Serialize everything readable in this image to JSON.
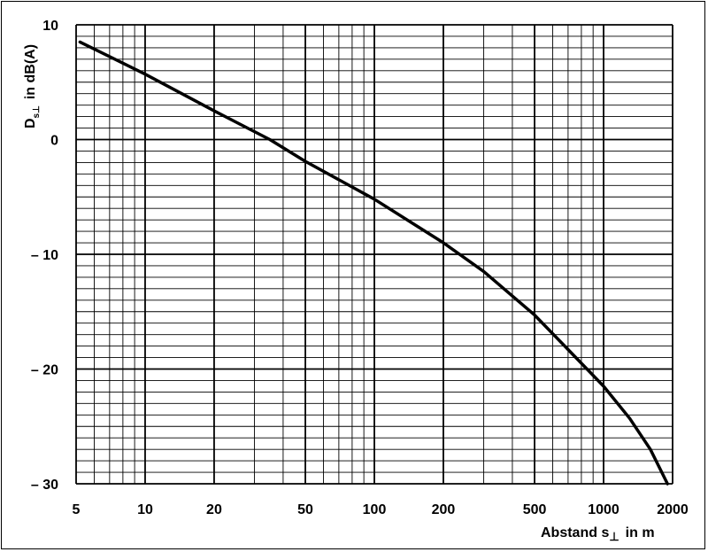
{
  "chart_data": {
    "type": "line",
    "x_scale": "log",
    "xlim": [
      5,
      2000
    ],
    "ylim": [
      -30,
      10
    ],
    "grid": true,
    "ylabel": {
      "main": "D",
      "sub": "s⊥",
      "rest": "in dB(A)"
    },
    "xlabel": {
      "main": "Abstand s",
      "sub": "⊥",
      "rest": "in m"
    },
    "x_ticks": [
      {
        "value": 5,
        "label": "5"
      },
      {
        "value": 10,
        "label": "10"
      },
      {
        "value": 20,
        "label": "20"
      },
      {
        "value": 50,
        "label": "50"
      },
      {
        "value": 100,
        "label": "100"
      },
      {
        "value": 200,
        "label": "200"
      },
      {
        "value": 500,
        "label": "500"
      },
      {
        "value": 1000,
        "label": "1000"
      },
      {
        "value": 2000,
        "label": "2000"
      }
    ],
    "y_ticks": [
      {
        "value": 10,
        "label": "10"
      },
      {
        "value": 0,
        "label": "0"
      },
      {
        "value": -10,
        "label": "– 10"
      },
      {
        "value": -20,
        "label": "– 20"
      },
      {
        "value": -30,
        "label": "– 30"
      }
    ],
    "series": [
      {
        "x": [
          5.2,
          10,
          20,
          35,
          50,
          100,
          200,
          300,
          500,
          700,
          1000,
          1300,
          1600,
          1900
        ],
        "y": [
          8.5,
          5.7,
          2.5,
          0,
          -1.9,
          -5.2,
          -9.0,
          -11.5,
          -15.3,
          -18.3,
          -21.5,
          -24.3,
          -27.0,
          -30.0
        ]
      }
    ]
  }
}
